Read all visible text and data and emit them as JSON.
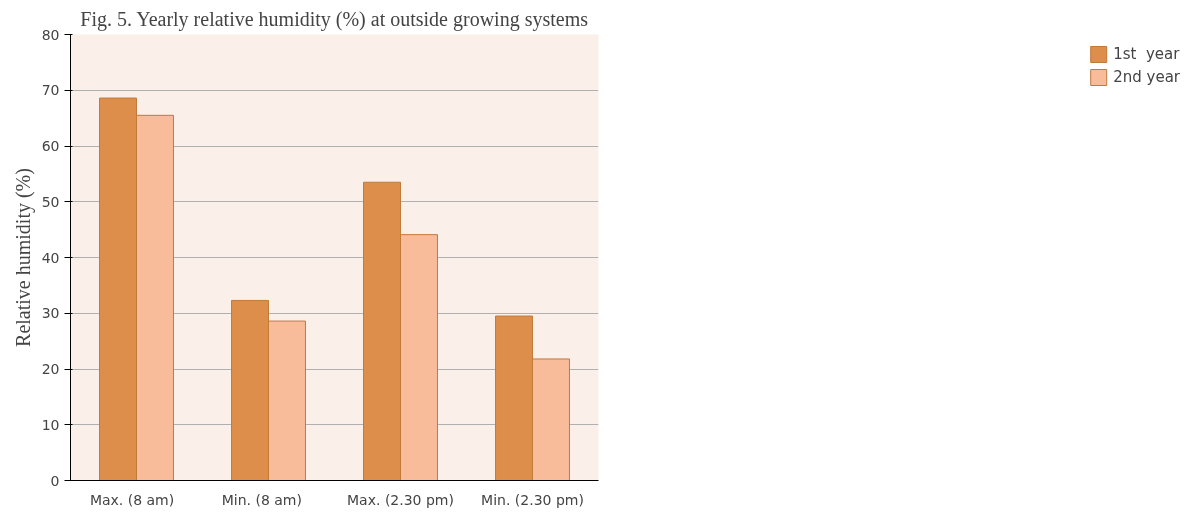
{
  "chart_data": {
    "type": "bar",
    "title": "Fig. 5. Yearly relative humidity (%) at outside growing systems",
    "ylabel": "Relative humidity (%)",
    "categories": [
      "Max.   (8 am)",
      "Min.    (8 am)",
      "Max. (2.30 pm)",
      "Min. (2.30 pm)"
    ],
    "series": [
      {
        "name": "1st  year",
        "color": "#dd8e4a",
        "values": [
          68.6,
          32.3,
          53.5,
          29.5
        ]
      },
      {
        "name": "2nd year",
        "color": "#f9bc9a",
        "values": [
          65.5,
          28.6,
          44.1,
          21.8
        ]
      }
    ],
    "ylim": [
      0,
      80
    ],
    "yticks": [
      0,
      10,
      20,
      30,
      40,
      50,
      60,
      70,
      80
    ],
    "grid": "y",
    "legend": "right"
  }
}
